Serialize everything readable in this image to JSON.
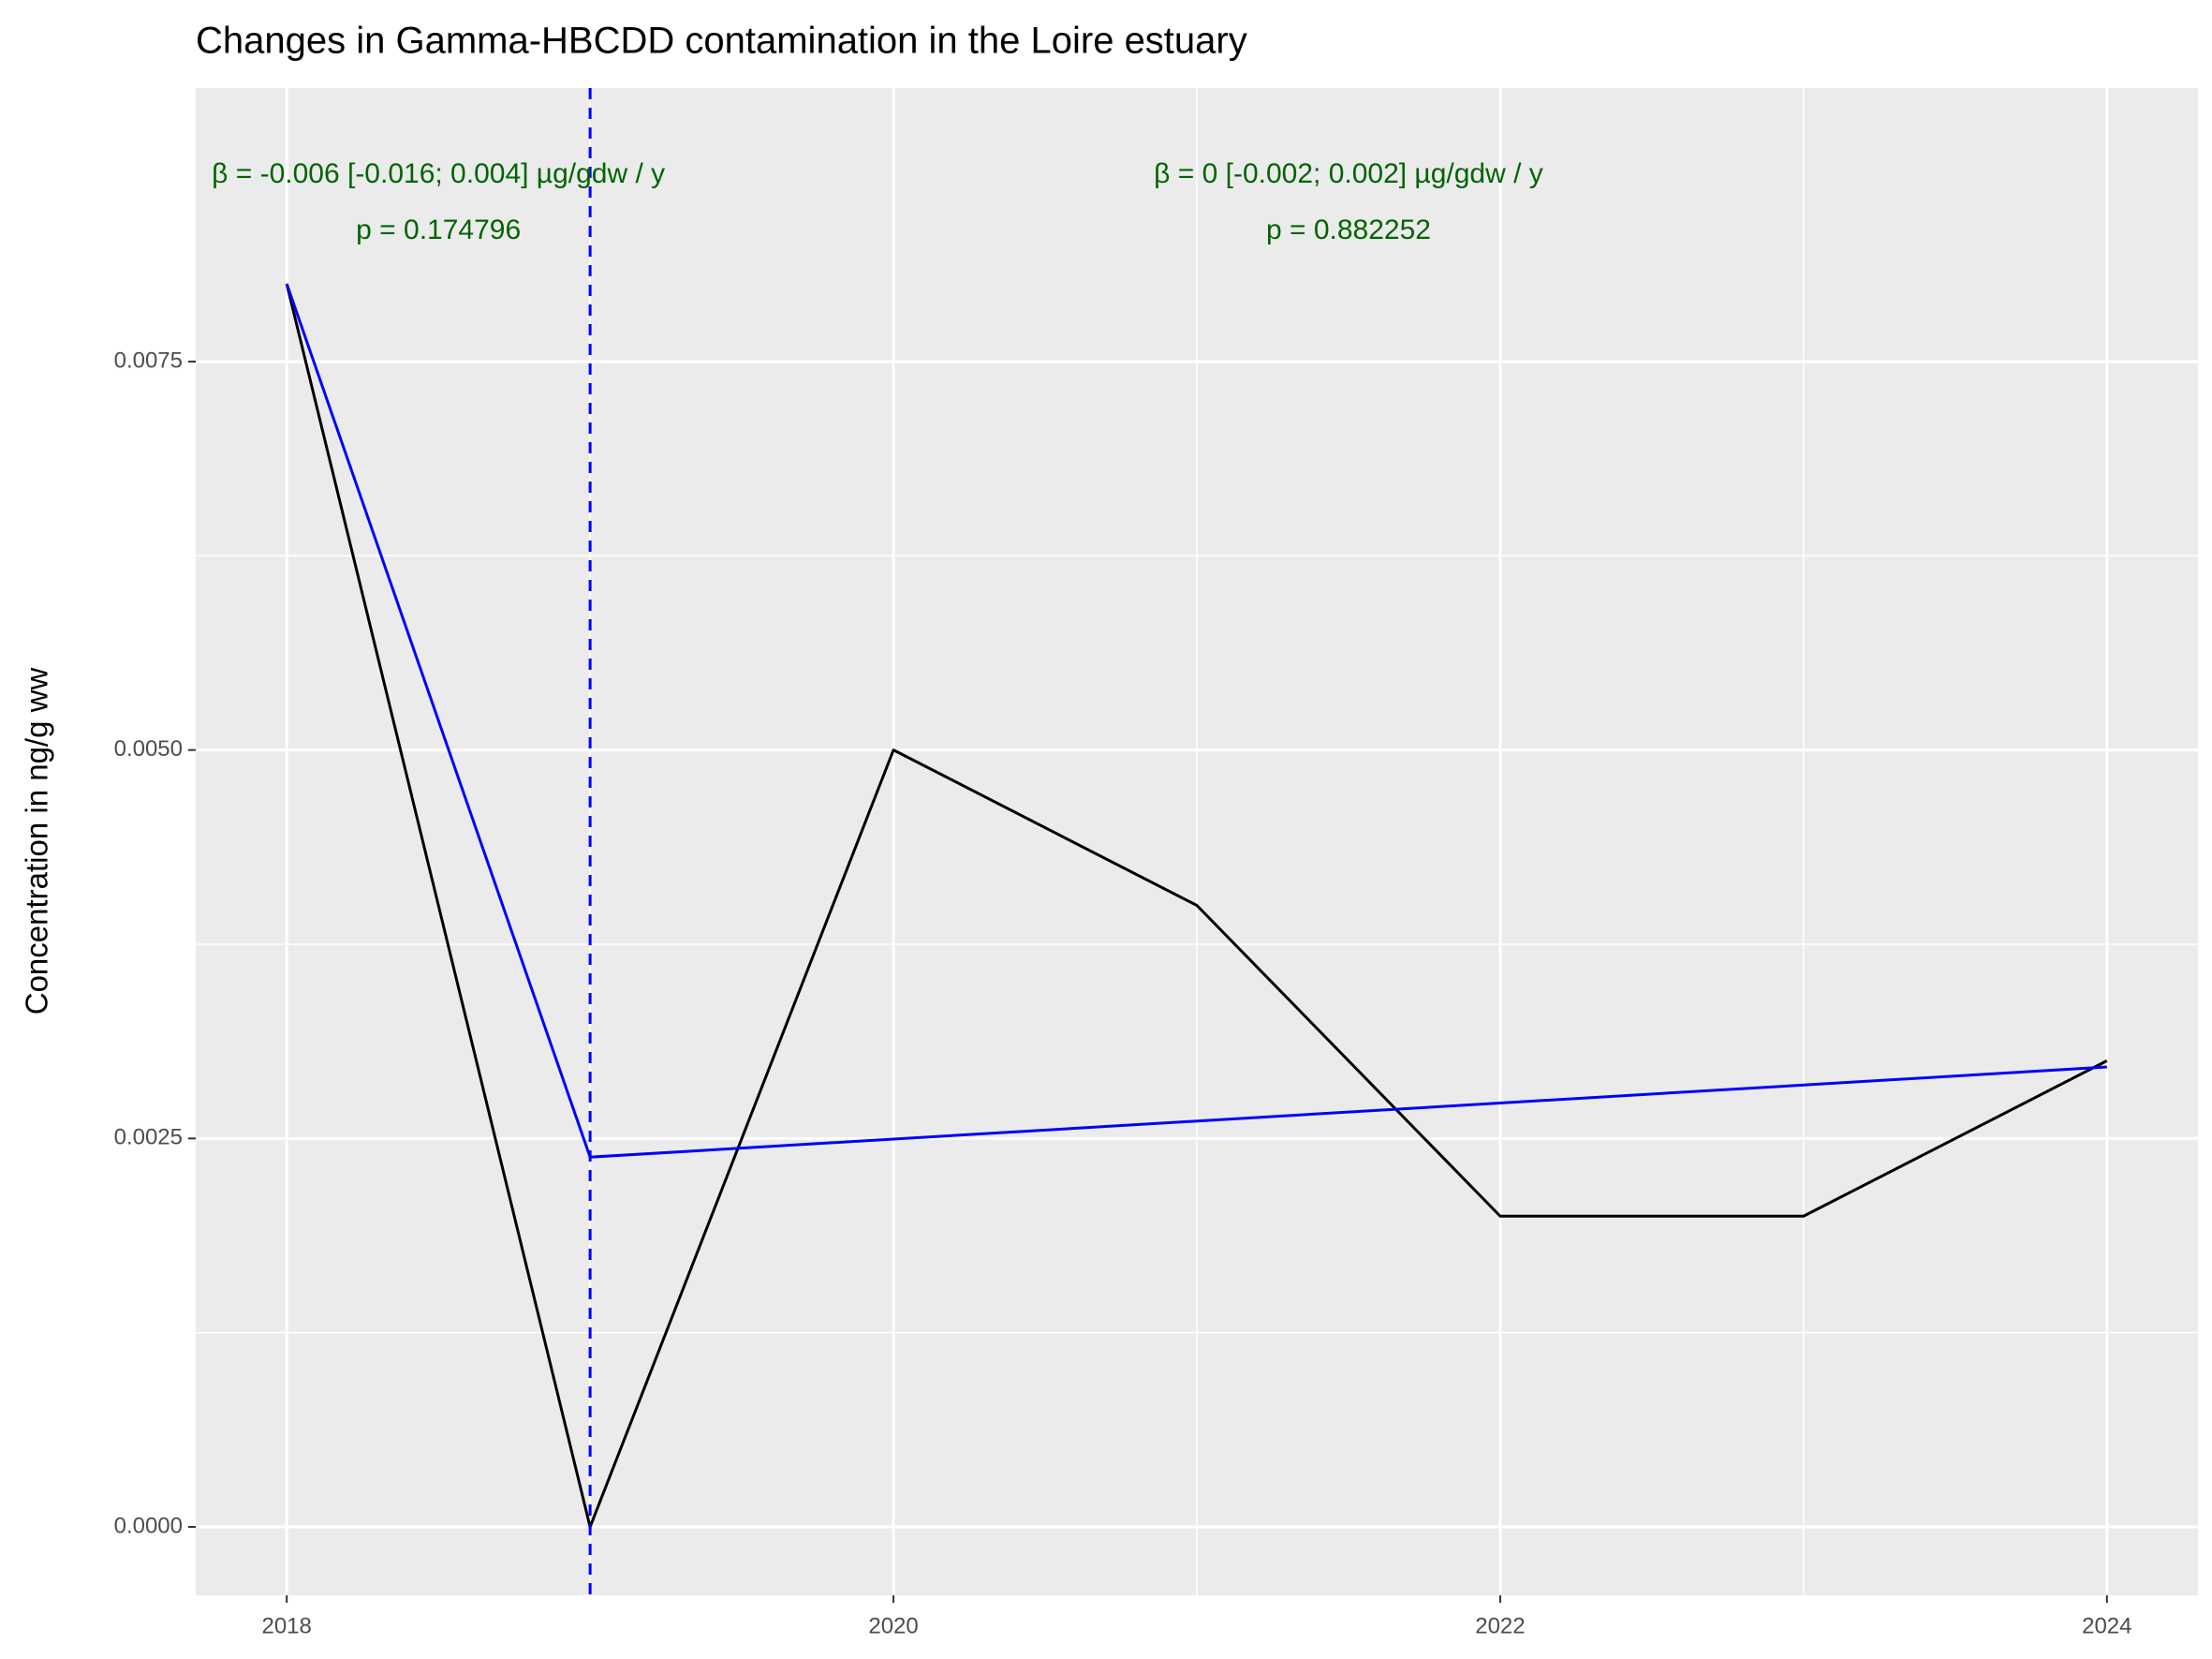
{
  "chart_data": {
    "type": "line",
    "title": "Changes in Gamma-HBCDD contamination in the Loire estuary",
    "y_label": "Concentration in ng/g ww",
    "x": [
      2018,
      2019,
      2020,
      2021,
      2022,
      2023,
      2024
    ],
    "series": [
      {
        "color": "#000000",
        "values": [
          0.008,
          0,
          0.005,
          0.004,
          0.002,
          0.002,
          0.003
        ]
      },
      {
        "color": "#0000ff",
        "x": [
          2018,
          2019,
          2024
        ],
        "values": [
          0.008,
          0.00238,
          0.00296
        ]
      }
    ],
    "vline": {
      "x": 2019,
      "color": "#0000ff",
      "dashed": true
    },
    "annotations": [
      {
        "x": 2018.5,
        "y": 0.0087,
        "color": "#006400",
        "lines": [
          "β = -0.006 [-0.016; 0.004] µg/gdw / y",
          "p = 0.174796"
        ]
      },
      {
        "x": 2021.5,
        "y": 0.0087,
        "color": "#006400",
        "lines": [
          "β = 0 [-0.002; 0.002] µg/gdw / y",
          "p = 0.882252"
        ]
      }
    ],
    "xlim": [
      2017.7,
      2024.3
    ],
    "xticks": [
      2018,
      2020,
      2022,
      2024
    ],
    "x_minor_breaks": [
      2019,
      2021,
      2023
    ],
    "ylim": [
      -0.00044,
      0.00926
    ],
    "yticks": [
      {
        "value": 0,
        "label": "0.0000"
      },
      0.0025,
      {
        "value": 0.005,
        "label": "0.0050"
      },
      0.0075
    ],
    "y_minor_breaks": [
      0.00125,
      0.00375,
      0.00625
    ],
    "grid": true
  }
}
